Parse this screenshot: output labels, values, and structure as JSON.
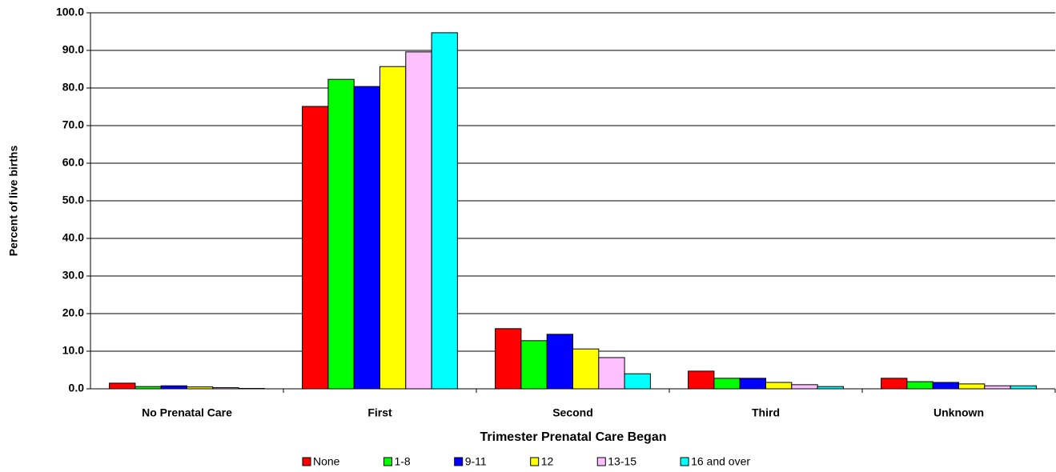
{
  "chart_data": {
    "type": "bar",
    "x_label": "Trimester Prenatal Care Began",
    "y_label": "Percent of live births",
    "categories": [
      "No Prenatal Care",
      "First",
      "Second",
      "Third",
      "Unknown"
    ],
    "series": [
      {
        "name": "None",
        "color": "#ff0000",
        "values": [
          1.5,
          75.1,
          16.0,
          4.7,
          2.8
        ]
      },
      {
        "name": "1-8",
        "color": "#00ff00",
        "values": [
          0.6,
          82.3,
          12.8,
          2.8,
          1.9
        ]
      },
      {
        "name": "9-11",
        "color": "#0000ff",
        "values": [
          0.8,
          80.4,
          14.5,
          2.8,
          1.7
        ]
      },
      {
        "name": "12",
        "color": "#ffff00",
        "values": [
          0.5,
          85.7,
          10.6,
          1.7,
          1.3
        ]
      },
      {
        "name": "13-15",
        "color": "#ffc0ff",
        "values": [
          0.3,
          89.6,
          8.3,
          1.1,
          0.8
        ]
      },
      {
        "name": "16 and over",
        "color": "#00ffff",
        "values": [
          0.1,
          94.7,
          4.0,
          0.6,
          0.8
        ]
      }
    ],
    "ylim": [
      0,
      100
    ],
    "yticks": [
      {
        "value": 0,
        "label": "0.0"
      },
      {
        "value": 10,
        "label": "10.0"
      },
      {
        "value": 20,
        "label": "20.0"
      },
      {
        "value": 30,
        "label": "30.0"
      },
      {
        "value": 40,
        "label": "40.0"
      },
      {
        "value": 50,
        "label": "50.0"
      },
      {
        "value": 60,
        "label": "60.0"
      },
      {
        "value": 70,
        "label": "70.0"
      },
      {
        "value": 80,
        "label": "80.0"
      },
      {
        "value": 90,
        "label": "90.0"
      },
      {
        "value": 100,
        "label": "100.0"
      }
    ],
    "grid": true,
    "legend": "bottom"
  }
}
